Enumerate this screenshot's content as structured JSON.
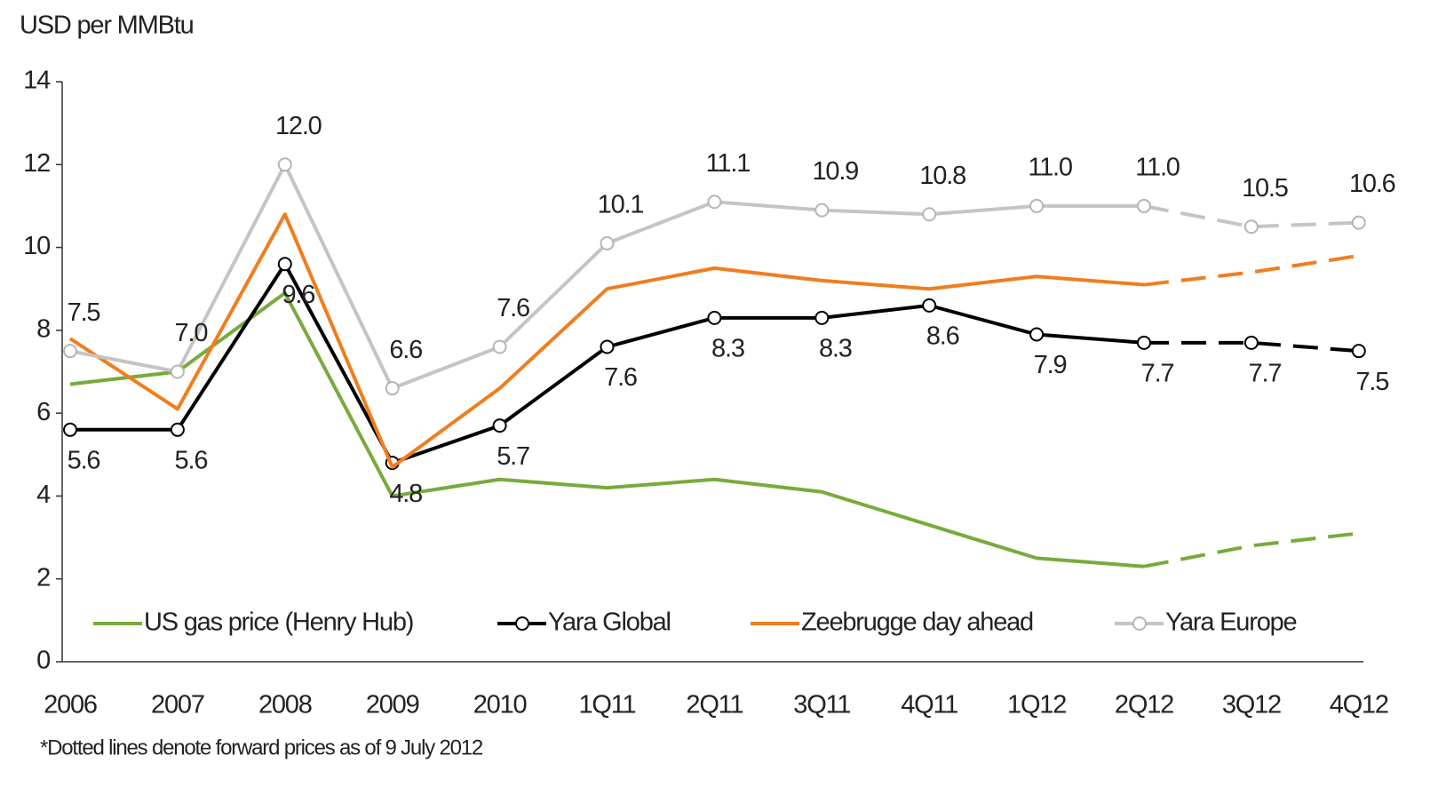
{
  "chart_data": {
    "type": "line",
    "y_label": "USD per MMBtu",
    "footnote": "*Dotted lines denote forward prices as of 9 July 2012",
    "categories": [
      "2006",
      "2007",
      "2008",
      "2009",
      "2010",
      "1Q11",
      "2Q11",
      "3Q11",
      "4Q11",
      "1Q12",
      "2Q12",
      "3Q12",
      "4Q12"
    ],
    "dashed_after": "2Q12",
    "ylim": [
      0,
      14
    ],
    "yticks": [
      0,
      2,
      4,
      6,
      8,
      10,
      12,
      14
    ],
    "series": [
      {
        "name": "US gas price (Henry Hub)",
        "color": "#77ab3c",
        "marker": false,
        "values": [
          6.7,
          7.0,
          8.9,
          4.0,
          4.4,
          4.2,
          4.4,
          4.1,
          3.3,
          2.5,
          2.3,
          2.8,
          3.1
        ]
      },
      {
        "name": "Yara Global",
        "color": "#000000",
        "marker": true,
        "label_side": "below",
        "values": [
          5.6,
          5.6,
          9.6,
          4.8,
          5.7,
          7.6,
          8.3,
          8.3,
          8.6,
          7.9,
          7.7,
          7.7,
          7.5
        ],
        "value_labels": [
          "5.6",
          "5.6",
          "9.6",
          "4.8",
          "5.7",
          "7.6",
          "8.3",
          "8.3",
          "8.6",
          "7.9",
          "7.7",
          "7.7",
          "7.5"
        ]
      },
      {
        "name": "Zeebrugge day ahead",
        "color": "#f07d1e",
        "marker": false,
        "values": [
          7.8,
          6.1,
          10.8,
          4.7,
          6.6,
          9.0,
          9.5,
          9.2,
          9.0,
          9.3,
          9.1,
          9.4,
          9.8
        ]
      },
      {
        "name": "Yara Europe",
        "color": "#c4c4c4",
        "marker": true,
        "label_side": "above",
        "values": [
          7.5,
          7.0,
          12.0,
          6.6,
          7.6,
          10.1,
          11.1,
          10.9,
          10.8,
          11.0,
          11.0,
          10.5,
          10.6
        ],
        "value_labels": [
          "7.5",
          "7.0",
          "12.0",
          "6.6",
          "7.6",
          "10.1",
          "11.1",
          "10.9",
          "10.8",
          "11.0",
          "11.0",
          "10.5",
          "10.6"
        ]
      }
    ]
  }
}
